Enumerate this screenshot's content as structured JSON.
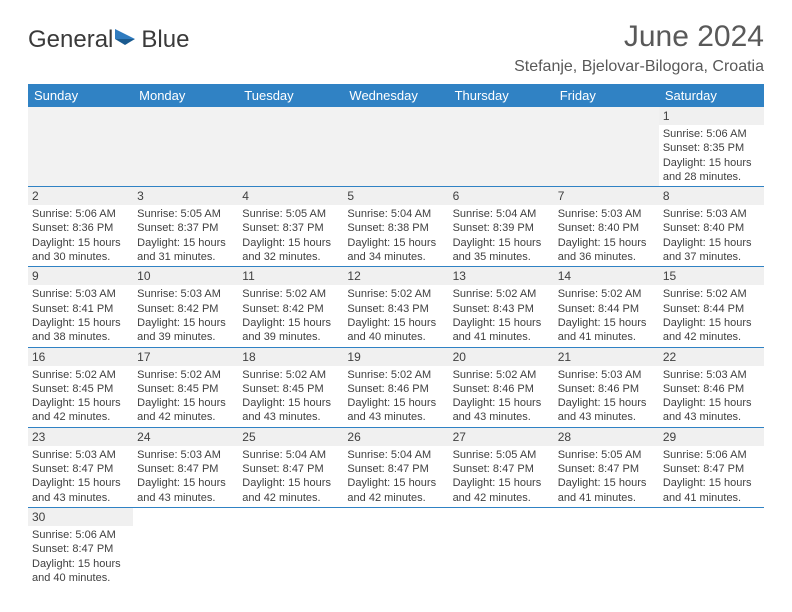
{
  "logo": {
    "text1": "General",
    "text2": "Blue"
  },
  "title": "June 2024",
  "location": "Stefanje, Bjelovar-Bilogora, Croatia",
  "colors": {
    "header_bg": "#3082c4",
    "header_text": "#ffffff",
    "daynum_bg": "#f0f0f0",
    "text": "#404040",
    "title_text": "#595959",
    "border": "#3082c4"
  },
  "day_headers": [
    "Sunday",
    "Monday",
    "Tuesday",
    "Wednesday",
    "Thursday",
    "Friday",
    "Saturday"
  ],
  "weeks": [
    [
      null,
      null,
      null,
      null,
      null,
      null,
      {
        "n": "1",
        "sunrise": "5:06 AM",
        "sunset": "8:35 PM",
        "daylight": "15 hours and 28 minutes."
      }
    ],
    [
      {
        "n": "2",
        "sunrise": "5:06 AM",
        "sunset": "8:36 PM",
        "daylight": "15 hours and 30 minutes."
      },
      {
        "n": "3",
        "sunrise": "5:05 AM",
        "sunset": "8:37 PM",
        "daylight": "15 hours and 31 minutes."
      },
      {
        "n": "4",
        "sunrise": "5:05 AM",
        "sunset": "8:37 PM",
        "daylight": "15 hours and 32 minutes."
      },
      {
        "n": "5",
        "sunrise": "5:04 AM",
        "sunset": "8:38 PM",
        "daylight": "15 hours and 34 minutes."
      },
      {
        "n": "6",
        "sunrise": "5:04 AM",
        "sunset": "8:39 PM",
        "daylight": "15 hours and 35 minutes."
      },
      {
        "n": "7",
        "sunrise": "5:03 AM",
        "sunset": "8:40 PM",
        "daylight": "15 hours and 36 minutes."
      },
      {
        "n": "8",
        "sunrise": "5:03 AM",
        "sunset": "8:40 PM",
        "daylight": "15 hours and 37 minutes."
      }
    ],
    [
      {
        "n": "9",
        "sunrise": "5:03 AM",
        "sunset": "8:41 PM",
        "daylight": "15 hours and 38 minutes."
      },
      {
        "n": "10",
        "sunrise": "5:03 AM",
        "sunset": "8:42 PM",
        "daylight": "15 hours and 39 minutes."
      },
      {
        "n": "11",
        "sunrise": "5:02 AM",
        "sunset": "8:42 PM",
        "daylight": "15 hours and 39 minutes."
      },
      {
        "n": "12",
        "sunrise": "5:02 AM",
        "sunset": "8:43 PM",
        "daylight": "15 hours and 40 minutes."
      },
      {
        "n": "13",
        "sunrise": "5:02 AM",
        "sunset": "8:43 PM",
        "daylight": "15 hours and 41 minutes."
      },
      {
        "n": "14",
        "sunrise": "5:02 AM",
        "sunset": "8:44 PM",
        "daylight": "15 hours and 41 minutes."
      },
      {
        "n": "15",
        "sunrise": "5:02 AM",
        "sunset": "8:44 PM",
        "daylight": "15 hours and 42 minutes."
      }
    ],
    [
      {
        "n": "16",
        "sunrise": "5:02 AM",
        "sunset": "8:45 PM",
        "daylight": "15 hours and 42 minutes."
      },
      {
        "n": "17",
        "sunrise": "5:02 AM",
        "sunset": "8:45 PM",
        "daylight": "15 hours and 42 minutes."
      },
      {
        "n": "18",
        "sunrise": "5:02 AM",
        "sunset": "8:45 PM",
        "daylight": "15 hours and 43 minutes."
      },
      {
        "n": "19",
        "sunrise": "5:02 AM",
        "sunset": "8:46 PM",
        "daylight": "15 hours and 43 minutes."
      },
      {
        "n": "20",
        "sunrise": "5:02 AM",
        "sunset": "8:46 PM",
        "daylight": "15 hours and 43 minutes."
      },
      {
        "n": "21",
        "sunrise": "5:03 AM",
        "sunset": "8:46 PM",
        "daylight": "15 hours and 43 minutes."
      },
      {
        "n": "22",
        "sunrise": "5:03 AM",
        "sunset": "8:46 PM",
        "daylight": "15 hours and 43 minutes."
      }
    ],
    [
      {
        "n": "23",
        "sunrise": "5:03 AM",
        "sunset": "8:47 PM",
        "daylight": "15 hours and 43 minutes."
      },
      {
        "n": "24",
        "sunrise": "5:03 AM",
        "sunset": "8:47 PM",
        "daylight": "15 hours and 43 minutes."
      },
      {
        "n": "25",
        "sunrise": "5:04 AM",
        "sunset": "8:47 PM",
        "daylight": "15 hours and 42 minutes."
      },
      {
        "n": "26",
        "sunrise": "5:04 AM",
        "sunset": "8:47 PM",
        "daylight": "15 hours and 42 minutes."
      },
      {
        "n": "27",
        "sunrise": "5:05 AM",
        "sunset": "8:47 PM",
        "daylight": "15 hours and 42 minutes."
      },
      {
        "n": "28",
        "sunrise": "5:05 AM",
        "sunset": "8:47 PM",
        "daylight": "15 hours and 41 minutes."
      },
      {
        "n": "29",
        "sunrise": "5:06 AM",
        "sunset": "8:47 PM",
        "daylight": "15 hours and 41 minutes."
      }
    ],
    [
      {
        "n": "30",
        "sunrise": "5:06 AM",
        "sunset": "8:47 PM",
        "daylight": "15 hours and 40 minutes."
      },
      null,
      null,
      null,
      null,
      null,
      null
    ]
  ],
  "labels": {
    "sunrise": "Sunrise:",
    "sunset": "Sunset:",
    "daylight": "Daylight:"
  }
}
